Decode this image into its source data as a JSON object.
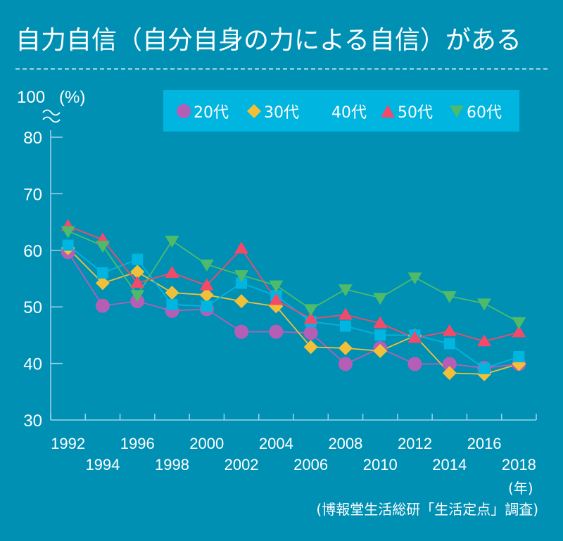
{
  "header": {
    "title": "自力自信（自分自身の力による自信）がある"
  },
  "colors": {
    "background": "#0090B4",
    "legend_bg": "#00B5E0",
    "axis": "#9FD3E6"
  },
  "legend_items": [
    {
      "label": "20代",
      "marker": "circle",
      "color": "#B45FB5"
    },
    {
      "label": "30代",
      "marker": "diamond",
      "color": "#F2C038"
    },
    {
      "label": "40代",
      "marker": "square",
      "color": "#00B5E0"
    },
    {
      "label": "50代",
      "marker": "triangle-up",
      "color": "#F24A6A"
    },
    {
      "label": "60代",
      "marker": "triangle-down",
      "color": "#4DBB6A"
    }
  ],
  "source_note": "(博報堂生活総研「生活定点」調査)",
  "chart_data": {
    "type": "line",
    "title": "自力自信（自分自身の力による自信）がある",
    "xlabel": "(年)",
    "ylabel": "(%)",
    "y_top_label": "100",
    "y_break_symbol": "≈",
    "ylim": [
      30,
      80
    ],
    "yticks": [
      "30",
      "40",
      "50",
      "60",
      "70",
      "80"
    ],
    "x": [
      "1992",
      "1994",
      "1996",
      "1998",
      "2000",
      "2002",
      "2004",
      "2006",
      "2008",
      "2010",
      "2012",
      "2014",
      "2016",
      "2018"
    ],
    "grid": false,
    "legend_position": "top",
    "series": [
      {
        "name": "20代",
        "values": [
          59.7,
          50.2,
          51.0,
          49.3,
          49.6,
          45.6,
          45.6,
          45.4,
          39.9,
          42.7,
          39.9,
          39.9,
          39.2,
          39.9
        ]
      },
      {
        "name": "30代",
        "values": [
          60.4,
          54.2,
          56.2,
          52.5,
          52.1,
          51.0,
          50.1,
          42.9,
          42.7,
          42.2,
          44.9,
          38.3,
          38.1,
          39.9
        ]
      },
      {
        "name": "40代",
        "values": [
          60.9,
          56.0,
          58.4,
          50.4,
          50.1,
          54.2,
          52.0,
          47.4,
          46.6,
          45.0,
          45.0,
          43.5,
          39.1,
          41.2
        ]
      },
      {
        "name": "50代",
        "values": [
          64.3,
          61.9,
          54.2,
          56.0,
          53.8,
          60.3,
          51.2,
          47.9,
          48.6,
          47.1,
          44.5,
          45.7,
          43.9,
          45.5
        ]
      },
      {
        "name": "60代",
        "values": [
          63.4,
          60.8,
          52.1,
          61.7,
          57.5,
          55.6,
          53.8,
          49.6,
          53.1,
          51.6,
          55.2,
          51.9,
          50.6,
          47.3
        ]
      }
    ]
  }
}
